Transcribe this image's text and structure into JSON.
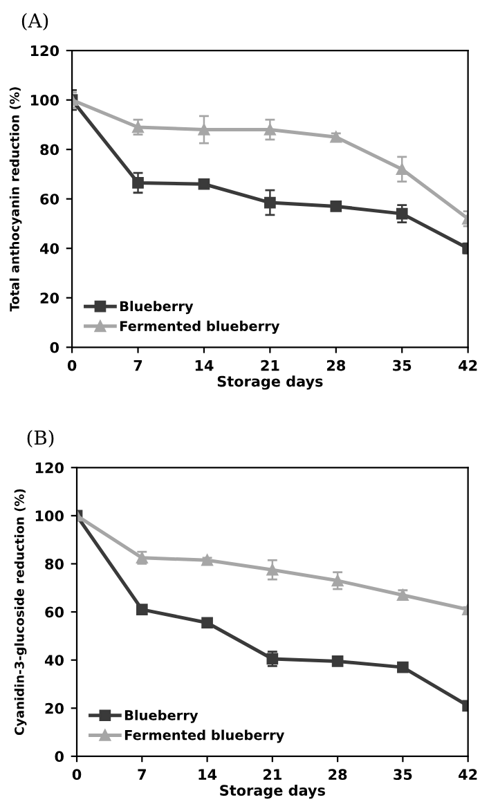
{
  "chart_data": [
    {
      "type": "line",
      "title": "(A)",
      "xlabel": "Storage days",
      "ylabel": "Total anthocyanin reduction (%)",
      "x": [
        0,
        7,
        14,
        21,
        28,
        35,
        42
      ],
      "xlim": [
        0,
        42
      ],
      "xticks": [
        0,
        7,
        14,
        21,
        28,
        35,
        42
      ],
      "ylim": [
        0,
        120
      ],
      "yticks": [
        0,
        20,
        40,
        60,
        80,
        100,
        120
      ],
      "grid": false,
      "legend": "bottom left",
      "line_style": "solid",
      "series": [
        {
          "name": "Blueberry",
          "color": "#3a3a3a",
          "marker": "square",
          "values": [
            100,
            66.5,
            66,
            58.5,
            57,
            54,
            40
          ],
          "errors": [
            4,
            4,
            1,
            5,
            1.5,
            3.5,
            2
          ]
        },
        {
          "name": "Fermented blueberry",
          "color": "#a6a6a6",
          "marker": "triangle",
          "values": [
            100,
            89,
            88,
            88,
            85,
            72,
            52
          ],
          "errors": [
            3,
            3,
            5.5,
            4,
            1.5,
            5,
            3
          ]
        }
      ]
    },
    {
      "type": "line",
      "title": "(B)",
      "xlabel": "Storage days",
      "ylabel": "Cyanidin-3-glucoside reduction (%)",
      "x": [
        0,
        7,
        14,
        21,
        28,
        35,
        42
      ],
      "xlim": [
        0,
        42
      ],
      "xticks": [
        0,
        7,
        14,
        21,
        28,
        35,
        42
      ],
      "ylim": [
        0,
        120
      ],
      "yticks": [
        0,
        20,
        40,
        60,
        80,
        100,
        120
      ],
      "grid": false,
      "legend": "bottom left",
      "line_style": "solid",
      "series": [
        {
          "name": "Blueberry",
          "color": "#3a3a3a",
          "marker": "square",
          "values": [
            100,
            61,
            55.5,
            40.5,
            39.5,
            37,
            21
          ],
          "errors": [
            1,
            1.5,
            1,
            3,
            1.5,
            1,
            1.5
          ]
        },
        {
          "name": "Fermented blueberry",
          "color": "#a6a6a6",
          "marker": "triangle",
          "values": [
            100,
            82.5,
            81.5,
            77.5,
            73,
            67,
            61
          ],
          "errors": [
            1,
            2.5,
            1,
            4,
            3.5,
            2,
            1
          ]
        }
      ]
    }
  ]
}
